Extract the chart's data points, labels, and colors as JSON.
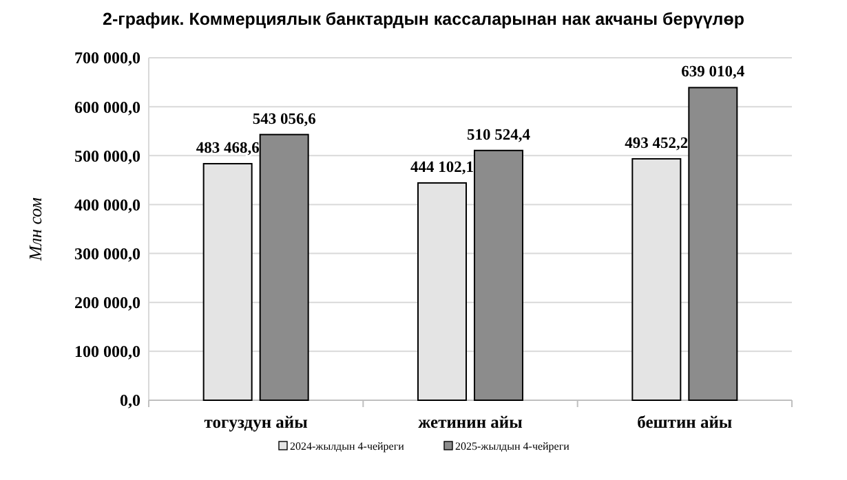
{
  "chart_data": {
    "type": "bar",
    "title": "2-график. Коммерциялык банктардын кассаларынан нак акчаны берүүлөр",
    "ylabel": "Млн сом",
    "categories": [
      "тогуздун айы",
      "жетинин айы",
      "бештин айы"
    ],
    "series": [
      {
        "name": "2024-жылдын 4-чейреги",
        "color": "#e4e4e4",
        "values": [
          483468.6,
          444102.1,
          493452.2
        ],
        "value_labels": [
          "483 468,6",
          "444 102,1",
          "493 452,2"
        ]
      },
      {
        "name": "2025-жылдын 4-чейреги",
        "color": "#8c8c8c",
        "values": [
          543056.6,
          510524.4,
          639010.4
        ],
        "value_labels": [
          "543 056,6",
          "510 524,4",
          "639 010,4"
        ]
      }
    ],
    "ylim": [
      0,
      700000
    ],
    "yticks": [
      {
        "value": 0,
        "label": "0,0"
      },
      {
        "value": 100000,
        "label": "100 000,0"
      },
      {
        "value": 200000,
        "label": "200 000,0"
      },
      {
        "value": 300000,
        "label": "300 000,0"
      },
      {
        "value": 400000,
        "label": "400 000,0"
      },
      {
        "value": 500000,
        "label": "500 000,0"
      },
      {
        "value": 600000,
        "label": "600 000,0"
      },
      {
        "value": 700000,
        "label": "700 000,0"
      }
    ],
    "grid": "y",
    "legend": "bottom"
  }
}
